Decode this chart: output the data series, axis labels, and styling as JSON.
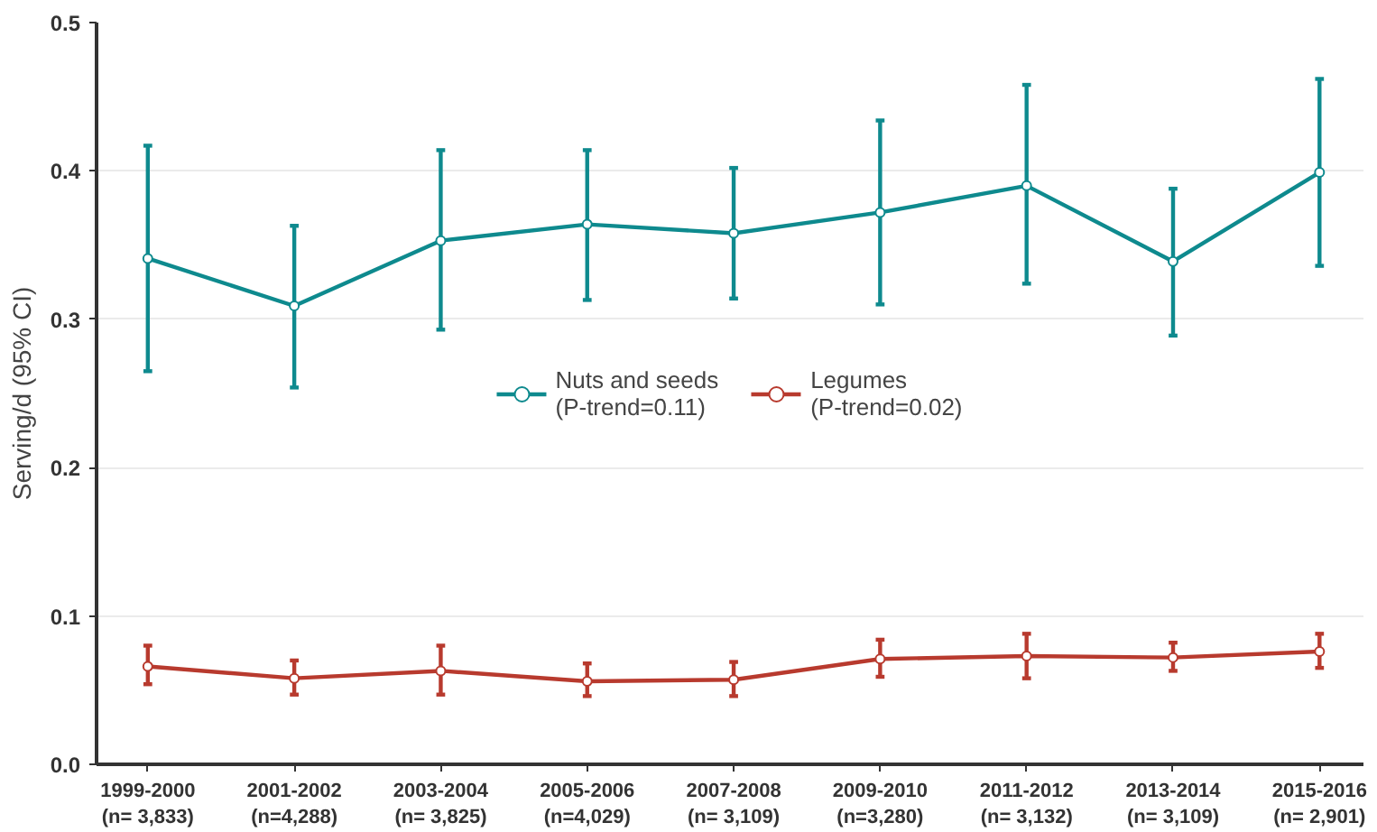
{
  "chart_data": {
    "type": "line",
    "ylabel": "Serving/d (95% CI)",
    "categories": [
      "1999-2000\n(n= 3,833)",
      "2001-2002\n(n=4,288)",
      "2003-2004\n(n= 3,825)",
      "2005-2006\n(n=4,029)",
      "2007-2008\n(n= 3,109)",
      "2009-2010\n(n=3,280)",
      "2011-2012\n(n= 3,132)",
      "2013-2014\n(n= 3,109)",
      "2015-2016\n(n= 2,901)"
    ],
    "series": [
      {
        "name": "Nuts and seeds\n(P-trend=0.11)",
        "color": "#0e8a8e",
        "values": [
          0.341,
          0.309,
          0.353,
          0.364,
          0.358,
          0.372,
          0.39,
          0.339,
          0.399
        ],
        "errors": [
          [
            0.265,
            0.417
          ],
          [
            0.254,
            0.363
          ],
          [
            0.293,
            0.414
          ],
          [
            0.313,
            0.414
          ],
          [
            0.314,
            0.402
          ],
          [
            0.31,
            0.434
          ],
          [
            0.324,
            0.458
          ],
          [
            0.289,
            0.388
          ],
          [
            0.336,
            0.462
          ]
        ]
      },
      {
        "name": "Legumes\n(P-trend=0.02)",
        "color": "#b83a2e",
        "values": [
          0.066,
          0.058,
          0.063,
          0.056,
          0.057,
          0.071,
          0.073,
          0.072,
          0.076
        ],
        "errors": [
          [
            0.054,
            0.08
          ],
          [
            0.047,
            0.07
          ],
          [
            0.047,
            0.08
          ],
          [
            0.046,
            0.068
          ],
          [
            0.046,
            0.069
          ],
          [
            0.059,
            0.084
          ],
          [
            0.058,
            0.088
          ],
          [
            0.063,
            0.082
          ],
          [
            0.065,
            0.088
          ]
        ]
      }
    ],
    "ylim": [
      0,
      0.5
    ],
    "yticks": [
      {
        "value": 0,
        "label": "0.0"
      },
      0.1,
      0.2,
      0.3,
      0.4,
      0.5
    ],
    "grid": "y",
    "legend": "center",
    "marker": "circle",
    "line_style": "solid"
  }
}
